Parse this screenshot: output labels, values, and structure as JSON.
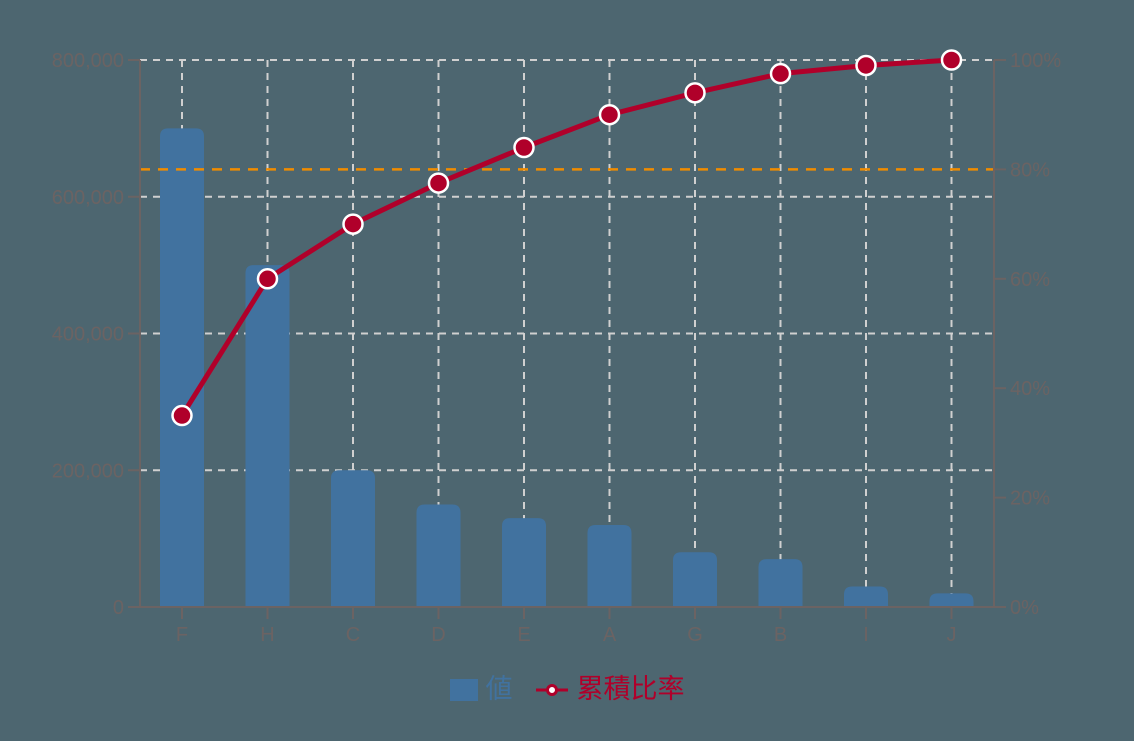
{
  "chart_data": {
    "type": "bar+line (pareto)",
    "categories": [
      "F",
      "H",
      "C",
      "D",
      "E",
      "A",
      "G",
      "B",
      "I",
      "J"
    ],
    "series": [
      {
        "name": "値",
        "type": "bar",
        "axis": "left",
        "color": "#41729f",
        "values": [
          700000,
          500000,
          200000,
          150000,
          130000,
          120000,
          80000,
          70000,
          30000,
          20000
        ]
      },
      {
        "name": "累積比率",
        "type": "line",
        "axis": "right",
        "color": "#b0002a",
        "values": [
          35,
          60,
          70,
          77.5,
          84,
          90,
          94,
          97.5,
          99,
          100
        ]
      }
    ],
    "left_axis": {
      "ylim": [
        0,
        800000
      ],
      "ticks": [
        0,
        200000,
        400000,
        600000,
        800000
      ],
      "tick_labels": [
        "0",
        "200,000",
        "400,000",
        "600,000",
        "800,000"
      ]
    },
    "right_axis": {
      "ylim": [
        0,
        100
      ],
      "ticks": [
        0,
        20,
        40,
        60,
        80,
        100
      ],
      "tick_labels": [
        "0%",
        "20%",
        "40%",
        "60%",
        "80%",
        "100%"
      ]
    },
    "reference_line": {
      "value_percent": 80,
      "color": "#f08c00",
      "style": "dashed"
    },
    "grid": true,
    "legend_position": "bottom",
    "title": "",
    "xlabel": "",
    "ylabel": ""
  },
  "colors": {
    "background": "#4d6670",
    "axis": "#6b6363",
    "tick_text": "#6b6363",
    "grid": "#d0d0d0",
    "bar": "#41729f",
    "line": "#b0002a",
    "marker_stroke": "#ffffff",
    "reference": "#f08c00"
  },
  "legend": {
    "items": [
      {
        "label": "値",
        "icon": "bar-swatch-icon",
        "color": "#41729f"
      },
      {
        "label": "累積比率",
        "icon": "line-marker-icon",
        "color": "#b0002a"
      }
    ]
  }
}
